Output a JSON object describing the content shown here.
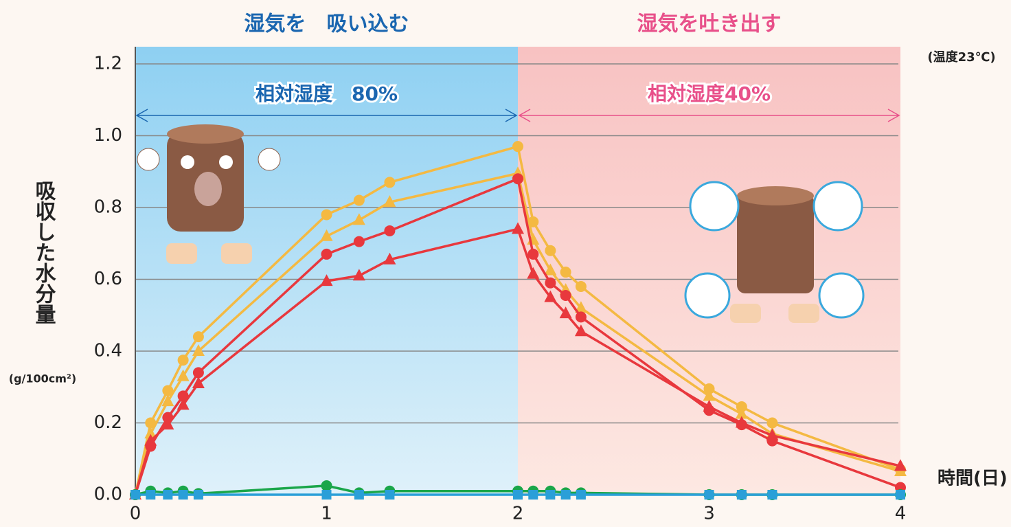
{
  "chart_data": {
    "type": "line",
    "regions": [
      {
        "label": "湿気を　吸い込む",
        "humidity_label": "相対湿度　80%",
        "start": 0,
        "end": 2,
        "color": "#1a66b0"
      },
      {
        "label": "湿気を吐き出す",
        "humidity_label": "相対湿度40%",
        "start": 2,
        "end": 4,
        "color": "#e8508a"
      }
    ],
    "note": "(温度23℃)",
    "y_label": "吸収した水分量",
    "y_unit": "(g/100cm²)",
    "x_label": "時間(日)",
    "x": [
      0,
      0.08,
      0.17,
      0.25,
      0.33,
      1,
      1.17,
      1.33,
      2,
      2.08,
      2.17,
      2.25,
      2.33,
      3,
      3.17,
      3.33,
      4
    ],
    "series": [
      {
        "color": "#f4b942",
        "marker": "circle",
        "values": [
          0,
          0.2,
          0.29,
          0.375,
          0.44,
          0.78,
          0.82,
          0.87,
          0.97,
          0.76,
          0.68,
          0.62,
          0.58,
          0.295,
          0.245,
          0.2,
          0.07
        ]
      },
      {
        "color": "#f4b942",
        "marker": "triangle",
        "values": [
          0,
          0.17,
          0.26,
          0.33,
          0.4,
          0.72,
          0.765,
          0.815,
          0.895,
          0.71,
          0.625,
          0.57,
          0.52,
          0.275,
          0.225,
          0.17,
          0.065
        ]
      },
      {
        "color": "#e8383d",
        "marker": "circle",
        "values": [
          0,
          0.135,
          0.215,
          0.275,
          0.34,
          0.67,
          0.705,
          0.735,
          0.88,
          0.67,
          0.59,
          0.555,
          0.495,
          0.235,
          0.195,
          0.15,
          0.02
        ]
      },
      {
        "color": "#e8383d",
        "marker": "triangle",
        "values": [
          0,
          0.15,
          0.195,
          0.25,
          0.31,
          0.595,
          0.61,
          0.655,
          0.74,
          0.615,
          0.55,
          0.505,
          0.455,
          0.245,
          0.2,
          0.165,
          0.08
        ]
      },
      {
        "color": "#1aa64a",
        "marker": "circle",
        "values": [
          0,
          0.01,
          0.005,
          0.01,
          0.003,
          0.025,
          0.005,
          0.01,
          0.01,
          0.01,
          0.01,
          0.005,
          0.005,
          0,
          0,
          0,
          0
        ]
      },
      {
        "color": "#2a9fd8",
        "marker": "square",
        "values": [
          0,
          0,
          0,
          0,
          0,
          0,
          0,
          0,
          0,
          0,
          0,
          0,
          0,
          0,
          0,
          0,
          0
        ]
      }
    ],
    "xlim": [
      0,
      4
    ],
    "xticks": [
      0,
      1,
      2,
      3,
      4
    ],
    "ylim": [
      0,
      1.2
    ],
    "yticks": [
      {
        "value": 0,
        "label": "0.0"
      },
      0.2,
      0.4,
      0.6,
      0.8,
      {
        "value": 1,
        "label": "1.0"
      },
      1.2
    ],
    "grid": true
  }
}
